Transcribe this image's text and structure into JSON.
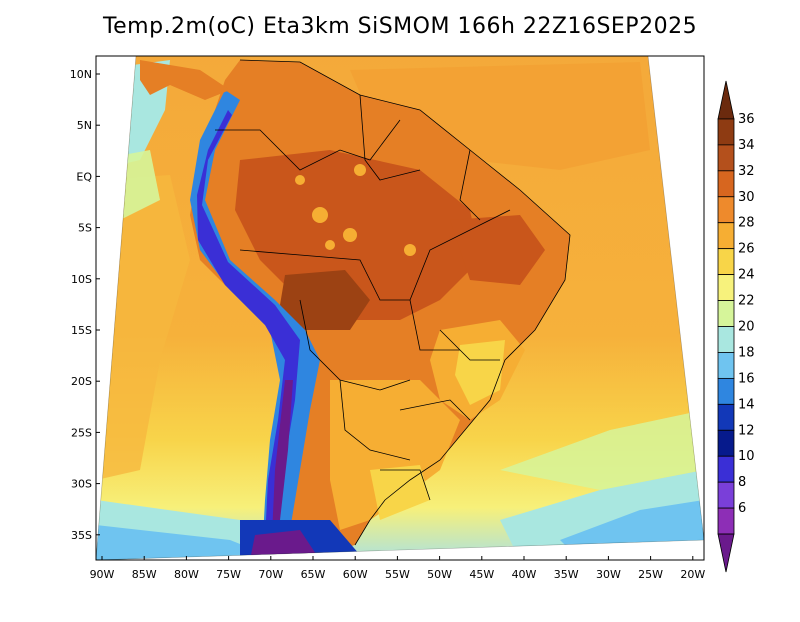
{
  "title": "Temp.2m(oC) Eta3km SiSMOM 166h 22Z16SEP2025",
  "lat_labels": [
    "10N",
    "5N",
    "EQ",
    "5S",
    "10S",
    "15S",
    "20S",
    "25S",
    "30S",
    "35S"
  ],
  "lon_labels": [
    "90W",
    "85W",
    "80W",
    "75W",
    "70W",
    "65W",
    "60W",
    "55W",
    "50W",
    "45W",
    "40W",
    "35W",
    "30W",
    "25W",
    "20W"
  ],
  "colorbar": {
    "labels": [
      "36",
      "34",
      "32",
      "30",
      "28",
      "26",
      "24",
      "22",
      "20",
      "18",
      "16",
      "14",
      "12",
      "10",
      "8",
      "6"
    ],
    "colors": [
      "#6b2a0e",
      "#8e3b12",
      "#b4501c",
      "#d7661f",
      "#ee8a2c",
      "#f6ae33",
      "#f8d548",
      "#f7f27c",
      "#d6f59a",
      "#a9e7e0",
      "#6fc4f0",
      "#2f86e0",
      "#1238b8",
      "#061a8c",
      "#3a2fd6",
      "#7a3fd9",
      "#8d2eb6",
      "#6a1a8c"
    ]
  }
}
